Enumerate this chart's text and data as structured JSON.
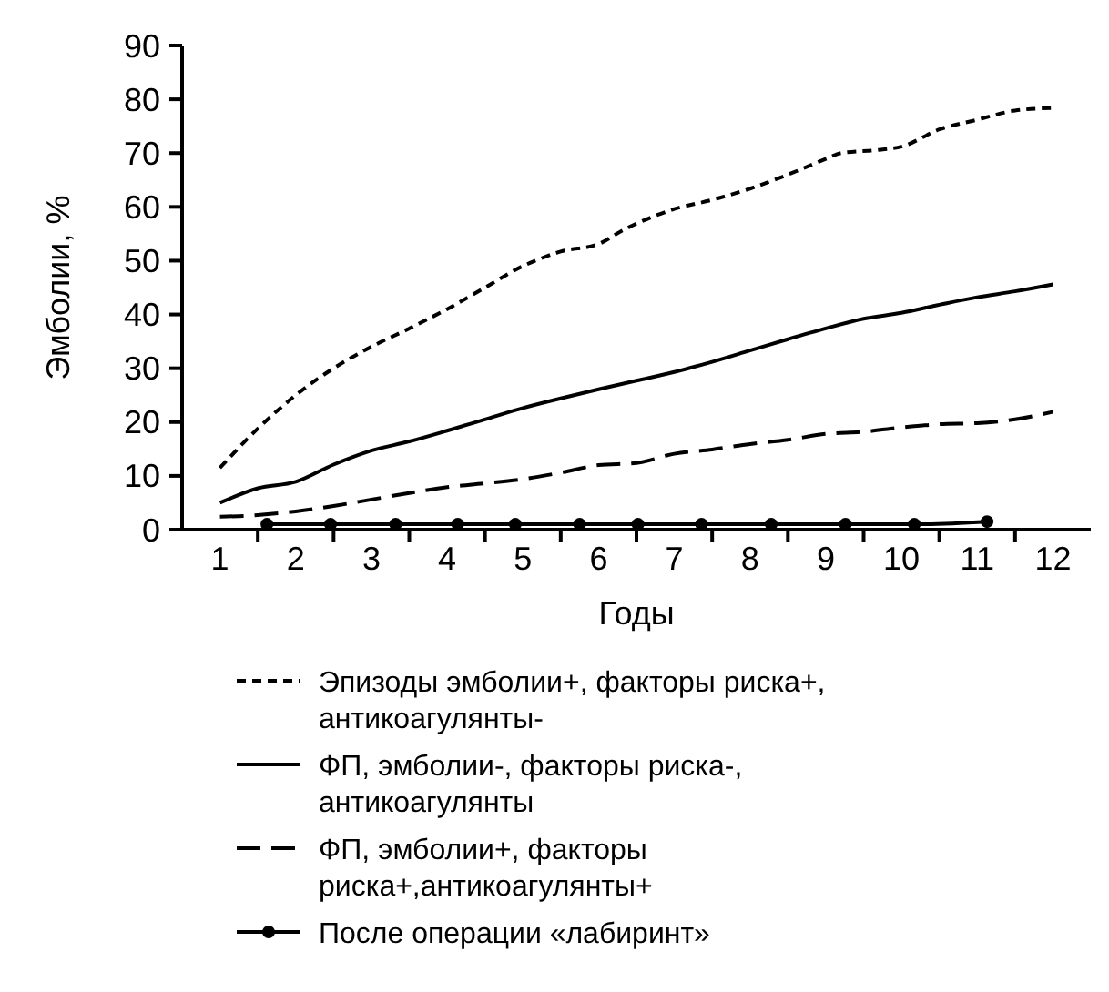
{
  "chart_data": {
    "type": "line",
    "xlabel": "Годы",
    "ylabel": "Эмболии, %",
    "xlim": [
      0.5,
      12.5
    ],
    "xticks": [
      1,
      2,
      3,
      4,
      5,
      6,
      7,
      8,
      9,
      10,
      11,
      12
    ],
    "ylim": [
      0,
      90
    ],
    "yticks": [
      0,
      10,
      20,
      30,
      40,
      50,
      60,
      70,
      80,
      90
    ],
    "grid": false,
    "legend": "bottom",
    "marker": "none",
    "series": [
      {
        "name": "Эпизоды эмболии+, факторы риска+, антикоагулянты-",
        "color": "#000000",
        "line_style": "dotted",
        "x": [
          1,
          1.5,
          2,
          2.5,
          3,
          3.5,
          4,
          4.5,
          5,
          5.2,
          5.5,
          6,
          6.3,
          7,
          7.5,
          8,
          8.5,
          9,
          9.2,
          9.7,
          10,
          10.5,
          11,
          11.5,
          12
        ],
        "values": [
          11.5,
          18.8,
          25,
          30,
          34,
          37.4,
          41,
          45,
          49,
          50.2,
          51.7,
          53.1,
          55.5,
          59.6,
          61.3,
          63.4,
          66,
          68.9,
          70,
          70.6,
          71.2,
          74.4,
          76.2,
          77.9,
          78.4
        ]
      },
      {
        "name": "ФП, эмболии-, факторы риска-, антикоагулянты",
        "color": "#000000",
        "line_style": "solid",
        "x": [
          1,
          1.5,
          2,
          2.5,
          3,
          3.5,
          4,
          4.5,
          5,
          5.5,
          6,
          6.5,
          7,
          7.5,
          8,
          8.5,
          9,
          9.5,
          10,
          10.5,
          11,
          11.5,
          12
        ],
        "values": [
          5,
          7.7,
          8.9,
          12.1,
          14.7,
          16.4,
          18.4,
          20.5,
          22.6,
          24.4,
          26.1,
          27.7,
          29.3,
          31.2,
          33.3,
          35.4,
          37.4,
          39.2,
          40.3,
          41.8,
          43.2,
          44.3,
          45.6
        ]
      },
      {
        "name": "ФП, эмболии+, факторы риска+,антикоагулянты+",
        "color": "#000000",
        "line_style": "dashed",
        "x": [
          1,
          1.5,
          2,
          2.5,
          3,
          3.5,
          4,
          4.5,
          5,
          5.5,
          6,
          6.5,
          7,
          7.5,
          8,
          8.5,
          9,
          9.5,
          10,
          10.5,
          11,
          11.5,
          12
        ],
        "values": [
          2.4,
          2.7,
          3.4,
          4.4,
          5.6,
          6.8,
          7.9,
          8.6,
          9.4,
          10.6,
          12,
          12.4,
          14.1,
          14.9,
          15.9,
          16.7,
          17.8,
          18.2,
          19,
          19.6,
          19.8,
          20.5,
          21.9
        ]
      },
      {
        "name": "После операции «лабиринт»",
        "color": "#000000",
        "line_style": "solid",
        "marker": "circle",
        "x": [
          1.62,
          2.46,
          3.32,
          4.14,
          4.9,
          5.75,
          6.52,
          7.36,
          8.28,
          9.26,
          10.17,
          11.13
        ],
        "values": [
          1,
          1,
          1,
          1,
          1,
          1,
          1,
          1,
          1,
          1,
          1,
          1.5
        ]
      }
    ]
  }
}
